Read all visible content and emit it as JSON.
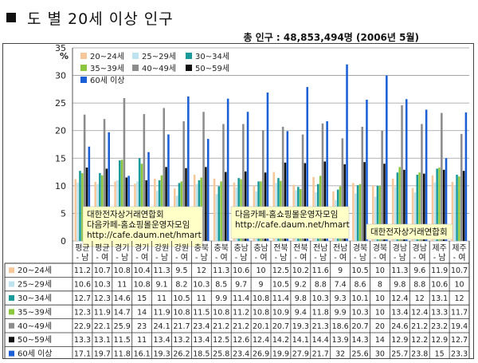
{
  "header": {
    "title": "도 별  20세 이상 인구",
    "total_line": "총 인구 : 48,853,494명 (2006년 5월)"
  },
  "chart_data": {
    "type": "bar",
    "ylabel": "%",
    "ylim": [
      0,
      35
    ],
    "yticks": [
      0,
      5,
      10,
      15,
      20,
      25,
      30,
      35
    ],
    "grid": true,
    "legend_position": "top-left",
    "categories": [
      "평균\n- 남",
      "평균\n- 여",
      "경기\n- 남",
      "경기\n- 여",
      "강원\n- 남",
      "강원\n- 여",
      "충북\n- 남",
      "충북\n- 여",
      "충남\n- 남",
      "충남\n- 여",
      "전북\n- 남",
      "전북\n- 여",
      "전남\n- 남",
      "전남\n- 여",
      "경북\n- 남",
      "경북\n- 여",
      "경남\n- 남",
      "경남\n- 여",
      "제주\n- 남",
      "제주\n- 여"
    ],
    "series": [
      {
        "name": "20~24세",
        "color": "#f5c79a",
        "values": [
          11.2,
          10.7,
          10.8,
          10.4,
          11.3,
          9.5,
          12,
          11.3,
          10.6,
          10,
          12.5,
          10.2,
          11.6,
          9,
          10.5,
          10,
          11.3,
          9.6,
          11.9,
          10.7
        ]
      },
      {
        "name": "25~29세",
        "color": "#bfe3ee",
        "values": [
          10.6,
          10.3,
          11,
          10.8,
          9.1,
          8.2,
          10.3,
          8.5,
          9.7,
          9,
          10.5,
          9.2,
          8.8,
          7.4,
          8.6,
          8,
          9.8,
          8.8,
          10.6,
          10
        ]
      },
      {
        "name": "30~34세",
        "color": "#1a9a9a",
        "values": [
          12.7,
          12.3,
          14.6,
          15,
          11,
          10.5,
          11,
          9.9,
          11.4,
          10.8,
          11.4,
          9.8,
          10.3,
          9.3,
          10.1,
          10,
          12.4,
          12,
          13.1,
          12
        ]
      },
      {
        "name": "35~39세",
        "color": "#8cc63f",
        "values": [
          12.3,
          11.9,
          14.7,
          14,
          11.9,
          10.8,
          11.5,
          10.8,
          11.2,
          10.8,
          10.9,
          9.4,
          11.8,
          9.9,
          10.3,
          10,
          13.4,
          12.4,
          13.3,
          11.7
        ]
      },
      {
        "name": "40~49세",
        "color": "#8c8c8c",
        "values": [
          22.9,
          22.1,
          25.9,
          23,
          24.1,
          21.7,
          23.4,
          21.2,
          21.2,
          20.1,
          20.7,
          19.3,
          21.3,
          18.6,
          20.7,
          20,
          24.6,
          21.2,
          23.2,
          19.4
        ]
      },
      {
        "name": "50~59세",
        "color": "#111111",
        "values": [
          13.3,
          13.1,
          11.5,
          11,
          13.4,
          13.2,
          13.4,
          12.5,
          12.6,
          12.4,
          14.2,
          14.1,
          14.4,
          13.9,
          14.3,
          14,
          12.9,
          12.2,
          12.9,
          12.7
        ]
      },
      {
        "name": "60세 이상",
        "color": "#1a5fd6",
        "values": [
          17.1,
          19.7,
          11.8,
          16.1,
          19.3,
          26.2,
          18.5,
          25.8,
          23.4,
          26.9,
          19.9,
          27.9,
          21.7,
          32,
          25.6,
          30,
          25.7,
          23.8,
          15,
          23.3
        ]
      }
    ]
  },
  "notes": [
    {
      "lines": [
        "대한전자상거래연합회",
        "다음카페-홈쇼핑몰운영자모임",
        "http://cafe.daum.net/hmart"
      ]
    },
    {
      "lines": [
        "다음카페-홈쇼핑몰운영자모임",
        "http://cafe.daum.net/hmart"
      ]
    },
    {
      "lines": [
        "대한전자상거래연합회"
      ]
    }
  ]
}
